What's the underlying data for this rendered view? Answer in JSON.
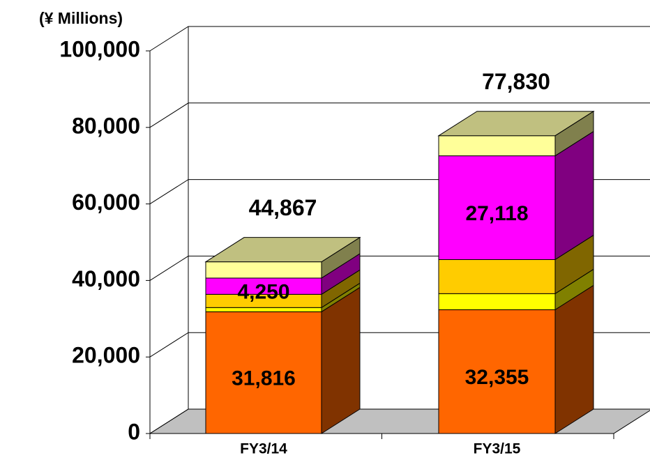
{
  "chart_data": {
    "type": "bar3d_stacked",
    "y_label": "(¥ Millions)",
    "categories": [
      "FY3/14",
      "FY3/15"
    ],
    "series": [
      {
        "color": "#ff6600",
        "values": [
          31816,
          32355
        ],
        "value_labels": [
          "31,816",
          "32,355"
        ]
      },
      {
        "color": "#ffff00",
        "values": [
          1100,
          4200
        ]
      },
      {
        "color": "#ffcc00",
        "values": [
          3460,
          8900
        ]
      },
      {
        "color": "#ff00ff",
        "values": [
          4250,
          27118
        ],
        "value_labels": [
          "4,250",
          "27,118"
        ]
      },
      {
        "color": "#ffff99",
        "values": [
          4241,
          5257
        ]
      }
    ],
    "totals": {
      "values": [
        44867,
        77830
      ],
      "value_labels": [
        "44,867",
        "77,830"
      ]
    },
    "ylim": [
      0,
      100000
    ],
    "yticks": [
      0,
      {
        "value": 20000,
        "label": "20,000"
      },
      {
        "value": 40000,
        "label": "40,000"
      },
      {
        "value": 60000,
        "label": "60,000"
      },
      {
        "value": 80000,
        "label": "80,000"
      },
      {
        "value": 100000,
        "label": "100,000"
      }
    ],
    "grid": true
  }
}
